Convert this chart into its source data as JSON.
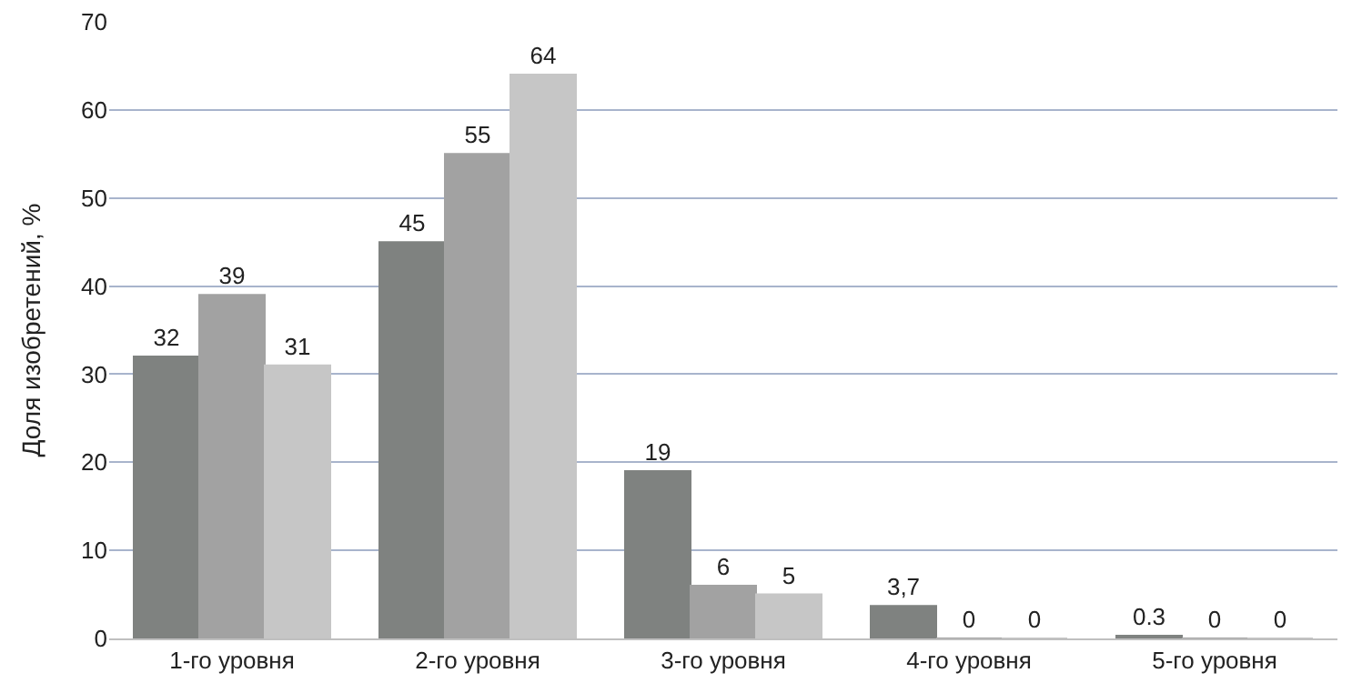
{
  "chart_data": {
    "type": "bar",
    "ylabel": "Доля изобретений, %",
    "categories": [
      "1-го уровня",
      "2-го уровня",
      "3-го уровня",
      "4-го уровня",
      "5-го уровня"
    ],
    "series": [
      {
        "color": "#7f8280",
        "values": [
          32,
          45,
          19,
          3.7,
          0.3
        ],
        "value_labels": [
          "32",
          "45",
          "19",
          "3,7",
          "0.3"
        ]
      },
      {
        "color": "#a2a2a2",
        "values": [
          39,
          55,
          6,
          0,
          0
        ],
        "value_labels": [
          "39",
          "55",
          "6",
          "0",
          "0"
        ]
      },
      {
        "color": "#c6c6c6",
        "values": [
          31,
          64,
          5,
          0,
          0
        ],
        "value_labels": [
          "31",
          "64",
          "5",
          "0",
          "0"
        ]
      }
    ],
    "ylim": [
      0,
      70
    ],
    "yticks": [
      0,
      10,
      20,
      30,
      40,
      50,
      60,
      70
    ],
    "grid": "y"
  }
}
